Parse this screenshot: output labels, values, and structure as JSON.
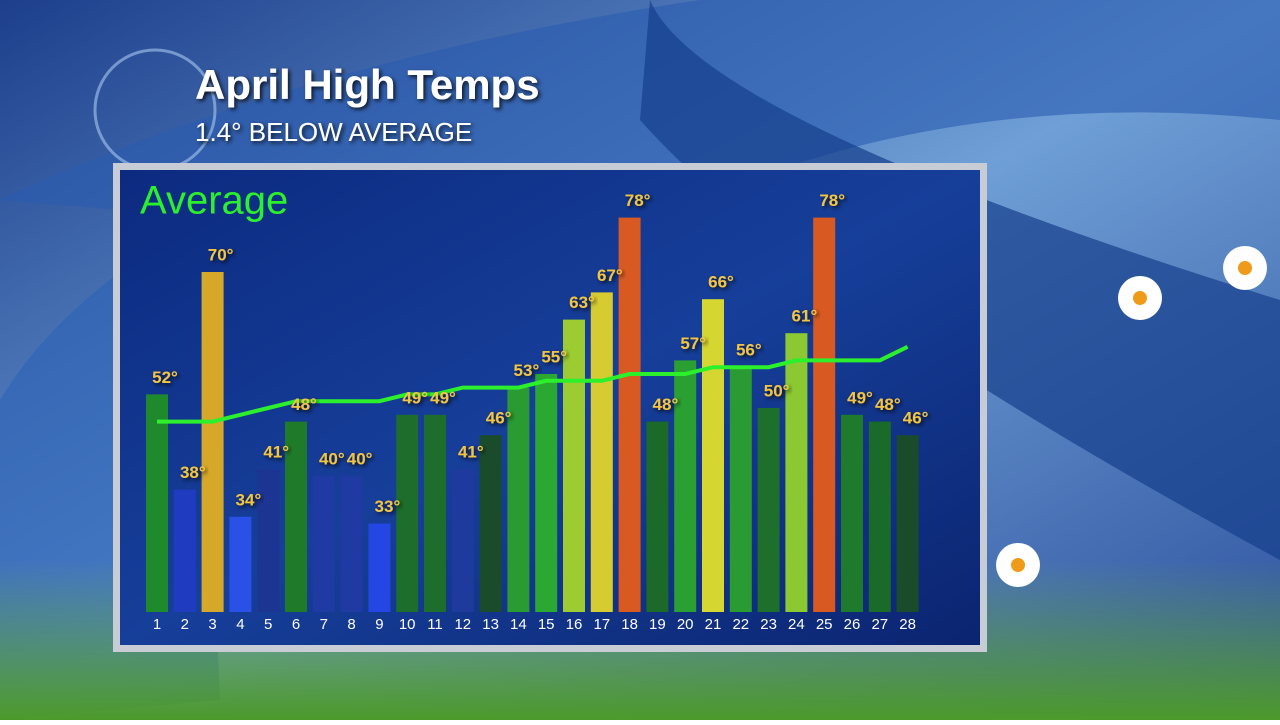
{
  "chart_data": {
    "type": "bar",
    "title": "April High Temps",
    "subtitle": "1.4° BELOW AVERAGE",
    "categories": [
      "1",
      "2",
      "3",
      "4",
      "5",
      "6",
      "7",
      "8",
      "9",
      "10",
      "11",
      "12",
      "13",
      "14",
      "15",
      "16",
      "17",
      "18",
      "19",
      "20",
      "21",
      "22",
      "23",
      "24",
      "25",
      "26",
      "27",
      "28"
    ],
    "ylim": [
      20,
      80
    ],
    "series": [
      {
        "type": "bar",
        "values": [
          52,
          38,
          70,
          34,
          41,
          48,
          40,
          40,
          33,
          49,
          49,
          41,
          46,
          53,
          55,
          63,
          67,
          78,
          48,
          57,
          66,
          56,
          50,
          61,
          78,
          49,
          48,
          46
        ],
        "value_labels": [
          "52°",
          "38°",
          "70°",
          "34°",
          "41°",
          "48°",
          "40°",
          "40°",
          "33°",
          "49°",
          "49°",
          "41°",
          "46°",
          "53°",
          "55°",
          "63°",
          "67°",
          "78°",
          "48°",
          "57°",
          "66°",
          "56°",
          "50°",
          "61°",
          "78°",
          "49°",
          "48°",
          "46°"
        ],
        "colors": [
          "#1f8a2c",
          "#1f3cc0",
          "#d6a82a",
          "#2a50e6",
          "#1d3592",
          "#1f7a2a",
          "#1f3aa2",
          "#1f3aa2",
          "#2446e2",
          "#1d6e2c",
          "#1d6e2c",
          "#1e3a9c",
          "#1a4c2c",
          "#2a9a32",
          "#2aa832",
          "#9ccc32",
          "#d6cc32",
          "#d85a22",
          "#1b6a2a",
          "#2aa032",
          "#d6d632",
          "#2a9a32",
          "#1e6e2c",
          "#8cc832",
          "#d85a22",
          "#1e7a2c",
          "#1a6a2a",
          "#1a4c2c"
        ]
      },
      {
        "type": "line",
        "name": "Average",
        "color": "#2cf02c",
        "values": [
          48,
          48,
          48,
          49,
          50,
          51,
          51,
          51,
          51,
          52,
          52,
          53,
          53,
          53,
          54,
          54,
          54,
          55,
          55,
          55,
          56,
          56,
          56,
          57,
          57,
          57,
          57,
          59
        ]
      }
    ]
  }
}
